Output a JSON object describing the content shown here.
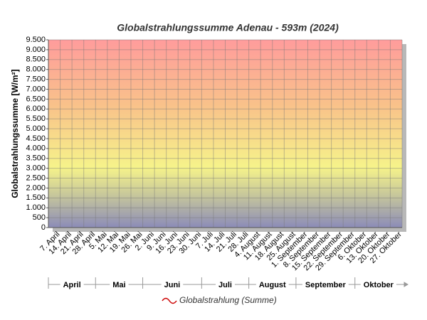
{
  "chart_data": {
    "type": "line",
    "title": "Globalstrahlungssumme Adenau - 593m (2024)",
    "y_label": "Globalstrahlungssumme [W/m²]",
    "categories": [
      "7. April",
      "14. April",
      "21. April",
      "28. April",
      "5. Mai",
      "12. Mai",
      "19. Mai",
      "26. Mai",
      "2. Juni",
      "9. Juni",
      "16. Juni",
      "23. Juni",
      "30. Juni",
      "7. Juli",
      "14. Juli",
      "21. Juli",
      "28. Juli",
      "4. August",
      "11. August",
      "18. August",
      "25. August",
      "1. September",
      "8. September",
      "15. September",
      "22. September",
      "29. September",
      "6. Oktober",
      "13. Oktober",
      "20. Oktober",
      "27. Oktober"
    ],
    "month_groups": [
      "April",
      "Mai",
      "Juni",
      "Juli",
      "August",
      "September",
      "Oktober"
    ],
    "series": [
      {
        "name": "Globalstrahlung (Summe)",
        "color": "#cc0000",
        "values": [
          null,
          null,
          null,
          null,
          null,
          null,
          null,
          null,
          null,
          null,
          null,
          null,
          null,
          null,
          null,
          null,
          null,
          null,
          null,
          null,
          null,
          null,
          null,
          null,
          null,
          null,
          null,
          null,
          null,
          null
        ]
      }
    ],
    "ylim": [
      0,
      9500
    ],
    "yticks": [
      0,
      500,
      {
        "value": 1000,
        "label": "1.000"
      },
      {
        "value": 1500,
        "label": "1.500"
      },
      {
        "value": 2000,
        "label": "2.000"
      },
      {
        "value": 2500,
        "label": "2.500"
      },
      {
        "value": 3000,
        "label": "3.000"
      },
      {
        "value": 3500,
        "label": "3.500"
      },
      {
        "value": 4000,
        "label": "4.000"
      },
      {
        "value": 4500,
        "label": "4.500"
      },
      {
        "value": 5000,
        "label": "5.000"
      },
      {
        "value": 5500,
        "label": "5.500"
      },
      {
        "value": 6000,
        "label": "6.000"
      },
      {
        "value": 6500,
        "label": "6.500"
      },
      {
        "value": 7000,
        "label": "7.000"
      },
      {
        "value": 7500,
        "label": "7.500"
      },
      {
        "value": 8000,
        "label": "8.000"
      },
      {
        "value": 8500,
        "label": "8.500"
      },
      {
        "value": 9000,
        "label": "9.000"
      },
      {
        "value": 9500,
        "label": "9.500"
      }
    ],
    "grid": true
  }
}
